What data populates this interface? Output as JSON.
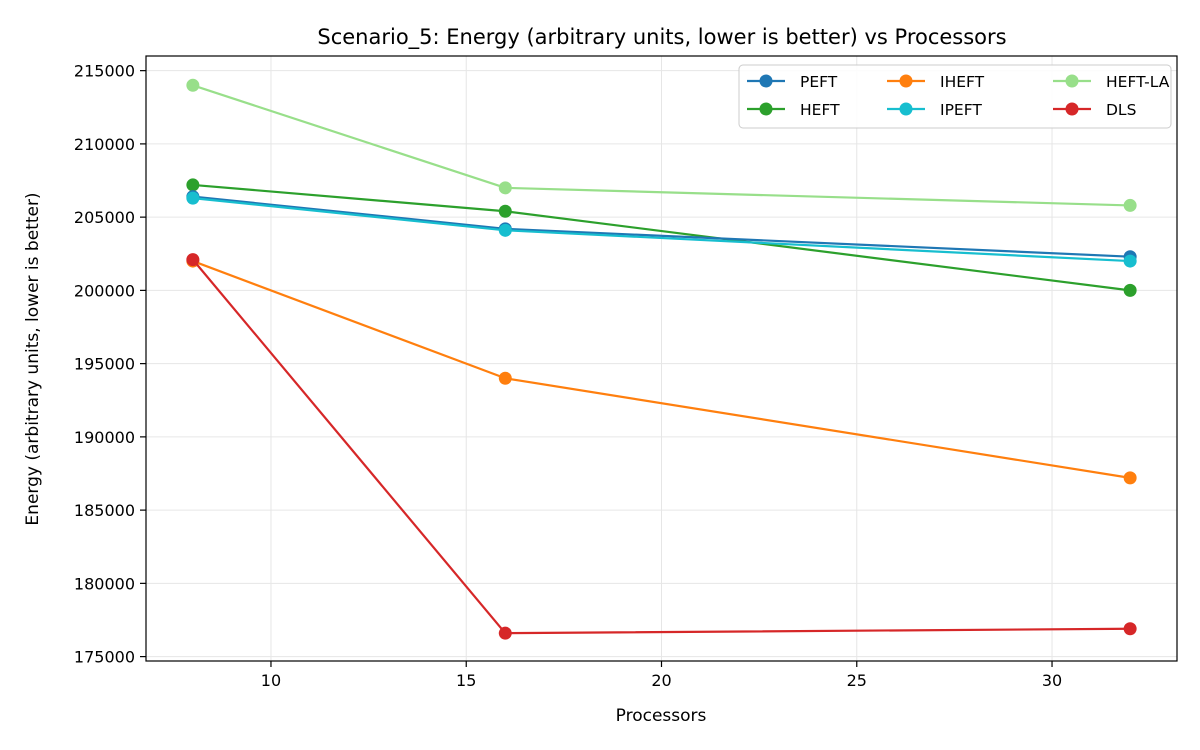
{
  "chart_data": {
    "type": "line",
    "title": "Scenario_5: Energy (arbitrary units, lower is better) vs Processors",
    "xlabel": "Processors",
    "ylabel": "Energy (arbitrary units, lower is better)",
    "x": [
      8,
      16,
      32
    ],
    "xlim": [
      6.8,
      33.2
    ],
    "ylim": [
      174700,
      216000
    ],
    "xticks": [
      10,
      15,
      20,
      25,
      30
    ],
    "yticks": [
      175000,
      180000,
      185000,
      190000,
      195000,
      200000,
      205000,
      210000,
      215000
    ],
    "grid": true,
    "legend_position": "top-right",
    "series": [
      {
        "name": "PEFT",
        "color": "#1f77b4",
        "values": [
          206400,
          204200,
          202300
        ]
      },
      {
        "name": "HEFT",
        "color": "#2ca02c",
        "values": [
          207200,
          205400,
          200000
        ]
      },
      {
        "name": "IHEFT",
        "color": "#ff7f0e",
        "values": [
          202000,
          194000,
          187200
        ]
      },
      {
        "name": "IPEFT",
        "color": "#17becf",
        "values": [
          206300,
          204100,
          202000
        ]
      },
      {
        "name": "HEFT-LA",
        "color": "#98df8a",
        "values": [
          214000,
          207000,
          205800
        ]
      },
      {
        "name": "DLS",
        "color": "#d62728",
        "values": [
          202100,
          176600,
          176900
        ]
      }
    ],
    "draw_order": [
      "HEFT-LA",
      "HEFT",
      "PEFT",
      "IPEFT",
      "IHEFT",
      "DLS"
    ]
  }
}
